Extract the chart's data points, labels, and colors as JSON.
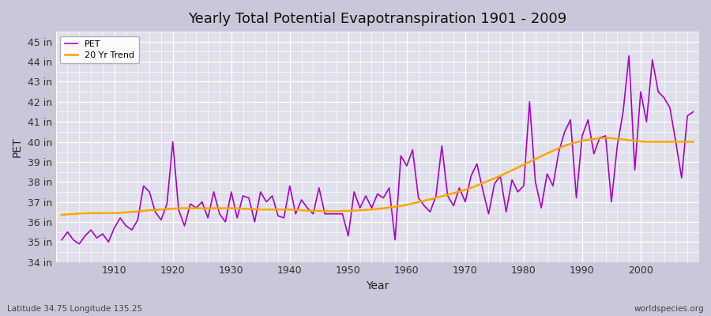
{
  "title": "Yearly Total Potential Evapotranspiration 1901 - 2009",
  "xlabel": "Year",
  "ylabel": "PET",
  "footnote_left": "Latitude 34.75 Longitude 135.25",
  "footnote_right": "worldspecies.org",
  "pet_color": "#AA00CC",
  "trend_color": "#FFA500",
  "fig_bg_color": "#C8C8D8",
  "plot_bg_color": "#E0E0EC",
  "ylim": [
    34,
    45.5
  ],
  "yticks": [
    34,
    35,
    36,
    37,
    38,
    39,
    40,
    41,
    42,
    43,
    44,
    45
  ],
  "xlim": [
    1900,
    2010
  ],
  "years": [
    1901,
    1902,
    1903,
    1904,
    1905,
    1906,
    1907,
    1908,
    1909,
    1910,
    1911,
    1912,
    1913,
    1914,
    1915,
    1916,
    1917,
    1918,
    1919,
    1920,
    1921,
    1922,
    1923,
    1924,
    1925,
    1926,
    1927,
    1928,
    1929,
    1930,
    1931,
    1932,
    1933,
    1934,
    1935,
    1936,
    1937,
    1938,
    1939,
    1940,
    1941,
    1942,
    1943,
    1944,
    1945,
    1946,
    1947,
    1948,
    1949,
    1950,
    1951,
    1952,
    1953,
    1954,
    1955,
    1956,
    1957,
    1958,
    1959,
    1960,
    1961,
    1962,
    1963,
    1964,
    1965,
    1966,
    1967,
    1968,
    1969,
    1970,
    1971,
    1972,
    1973,
    1974,
    1975,
    1976,
    1977,
    1978,
    1979,
    1980,
    1981,
    1982,
    1983,
    1984,
    1985,
    1986,
    1987,
    1988,
    1989,
    1990,
    1991,
    1992,
    1993,
    1994,
    1995,
    1996,
    1997,
    1998,
    1999,
    2000,
    2001,
    2002,
    2003,
    2004,
    2005,
    2006,
    2007,
    2008,
    2009
  ],
  "pet_values": [
    35.1,
    35.5,
    35.1,
    34.9,
    35.3,
    35.6,
    35.2,
    35.4,
    35.0,
    35.7,
    36.2,
    35.8,
    35.6,
    36.1,
    37.8,
    37.5,
    36.5,
    36.1,
    36.9,
    40.0,
    36.6,
    35.8,
    36.9,
    36.7,
    37.0,
    36.2,
    37.5,
    36.4,
    36.0,
    37.5,
    36.2,
    37.3,
    37.2,
    36.0,
    37.5,
    37.0,
    37.3,
    36.3,
    36.2,
    37.8,
    36.4,
    37.1,
    36.7,
    36.4,
    37.7,
    36.4,
    36.4,
    36.4,
    36.4,
    35.3,
    37.5,
    36.7,
    37.3,
    36.7,
    37.4,
    37.2,
    37.7,
    35.1,
    39.3,
    38.8,
    39.6,
    37.2,
    36.8,
    36.5,
    37.3,
    39.8,
    37.3,
    36.8,
    37.7,
    37.0,
    38.3,
    38.9,
    37.6,
    36.4,
    37.9,
    38.3,
    36.5,
    38.1,
    37.5,
    37.8,
    42.0,
    38.0,
    36.7,
    38.4,
    37.8,
    39.5,
    40.5,
    41.1,
    37.2,
    40.3,
    41.1,
    39.4,
    40.2,
    40.3,
    37.0,
    39.8,
    41.5,
    44.3,
    38.6,
    42.5,
    41.0,
    44.1,
    42.5,
    42.2,
    41.7,
    40.0,
    38.2,
    41.3,
    41.5
  ],
  "trend_values": [
    36.35,
    36.38,
    36.4,
    36.42,
    36.43,
    36.44,
    36.44,
    36.44,
    36.44,
    36.44,
    36.45,
    36.48,
    36.5,
    36.52,
    36.55,
    36.58,
    36.6,
    36.62,
    36.64,
    36.66,
    36.68,
    36.68,
    36.68,
    36.68,
    36.68,
    36.68,
    36.68,
    36.68,
    36.68,
    36.68,
    36.68,
    36.66,
    36.64,
    36.63,
    36.62,
    36.62,
    36.62,
    36.62,
    36.62,
    36.62,
    36.6,
    36.58,
    36.56,
    36.55,
    36.55,
    36.54,
    36.53,
    36.53,
    36.54,
    36.55,
    36.56,
    36.58,
    36.6,
    36.62,
    36.65,
    36.68,
    36.72,
    36.76,
    36.8,
    36.85,
    36.92,
    36.99,
    37.06,
    37.13,
    37.2,
    37.28,
    37.36,
    37.44,
    37.52,
    37.6,
    37.7,
    37.82,
    37.94,
    38.06,
    38.18,
    38.3,
    38.44,
    38.58,
    38.72,
    38.86,
    39.0,
    39.14,
    39.28,
    39.42,
    39.55,
    39.68,
    39.8,
    39.9,
    39.98,
    40.05,
    40.1,
    40.14,
    40.18,
    40.2,
    40.18,
    40.15,
    40.12,
    40.08,
    40.05,
    40.02,
    40.0,
    40.0,
    40.0,
    40.0,
    40.0,
    40.0,
    40.0,
    40.0,
    40.0
  ]
}
